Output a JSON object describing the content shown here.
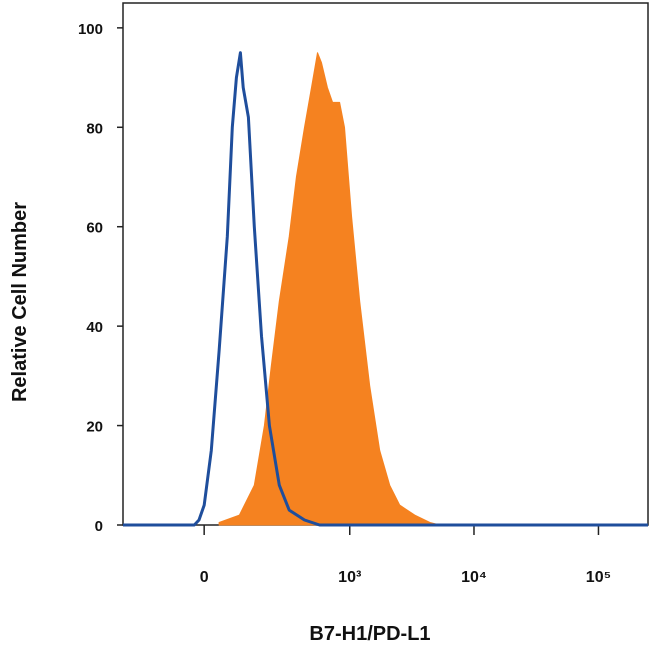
{
  "chart_data": {
    "type": "histogram_overlay",
    "x_label": "B7-H1/PD-L1",
    "y_label": "Relative Cell Number",
    "x_scale": "biexponential",
    "xlim": [
      -290,
      250000
    ],
    "ylim": [
      0,
      105
    ],
    "xticks": [
      0,
      {
        "value": 1000,
        "label": "10³"
      },
      {
        "value": 10000,
        "label": "10⁴"
      },
      {
        "value": 100000,
        "label": "10⁵"
      }
    ],
    "yticks": [
      0,
      20,
      40,
      60,
      80,
      100
    ],
    "series": [
      {
        "color": "#f58220",
        "fill": true,
        "x": [
          38,
          95,
          145,
          185,
          216,
          256,
          314,
          362,
          424,
          486,
          545,
          588,
          658,
          725,
          827,
          907,
          1036,
          1204,
          1449,
          1745,
          2101,
          2530,
          3340,
          4420,
          5320
        ],
        "values": [
          0.5,
          2,
          8,
          20,
          32,
          45,
          58,
          70,
          80,
          88,
          95,
          93,
          88,
          85,
          85,
          80,
          62,
          45,
          28,
          15,
          8,
          4,
          2,
          0.5,
          0
        ]
      },
      {
        "color": "#1f4e9c",
        "fill": false,
        "x": [
          -290,
          -25,
          -13,
          0,
          18,
          38,
          60,
          74,
          86,
          98,
          107,
          124,
          145,
          173,
          207,
          256,
          314,
          424,
          567,
          250000
        ],
        "values": [
          0,
          0,
          1,
          4,
          15,
          35,
          58,
          80,
          90,
          95,
          88,
          82,
          60,
          38,
          20,
          8,
          3,
          1,
          0,
          0
        ]
      }
    ]
  }
}
